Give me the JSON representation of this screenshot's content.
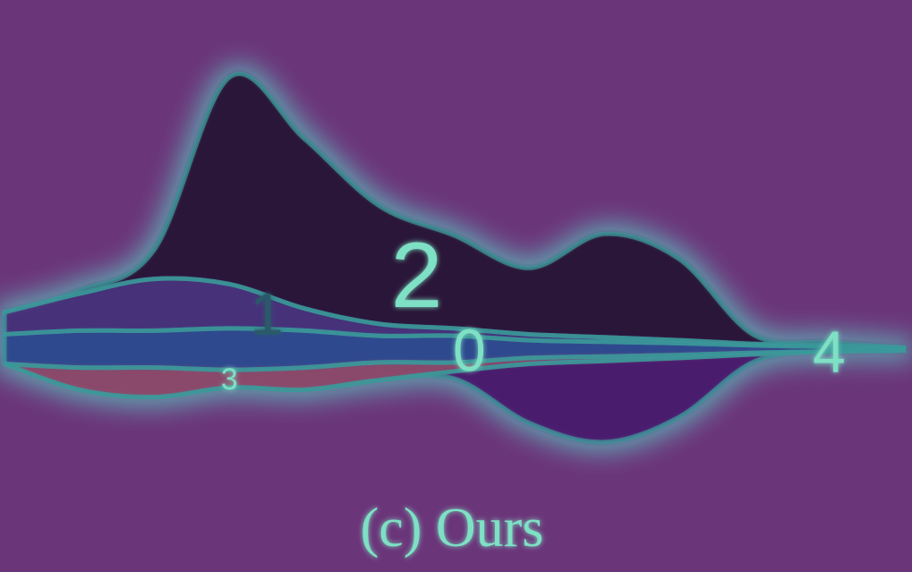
{
  "chart_data": {
    "type": "area",
    "subtype": "streamgraph",
    "title": "",
    "caption": "(c) Ours",
    "xlabel": "",
    "ylabel": "",
    "axes_visible": false,
    "grid": false,
    "legend": "none",
    "overlay": "saliency heatmap",
    "x": [
      0,
      1,
      2,
      3,
      4,
      5,
      6,
      7,
      8,
      9,
      10,
      11,
      12
    ],
    "order_top_to_bottom": [
      "2",
      "1",
      "0",
      "3",
      "4"
    ],
    "series": [
      {
        "name": "2",
        "label": "2",
        "values": [
          0,
          0.2,
          2,
          14,
          11.5,
          8,
          6.3,
          4.5,
          7,
          5.5,
          0.6,
          0.2,
          0
        ]
      },
      {
        "name": "1",
        "label": "1",
        "values": [
          1.5,
          2.5,
          3.5,
          3,
          1.5,
          0.8,
          0.5,
          0.4,
          0.3,
          0.2,
          0.1,
          0.1,
          0
        ]
      },
      {
        "name": "0",
        "label": "0",
        "values": [
          2,
          2.5,
          2.5,
          2.8,
          2.5,
          1.8,
          1.8,
          1.2,
          1,
          0.8,
          0.5,
          0.3,
          0.2
        ]
      },
      {
        "name": "3",
        "label": "3",
        "values": [
          0,
          1.5,
          2,
          1.2,
          1.5,
          1.2,
          0.6,
          0.4,
          0.3,
          0.2,
          0.1,
          0,
          0
        ]
      },
      {
        "name": "4",
        "label": "4",
        "values": [
          0,
          0,
          0,
          0,
          0,
          0,
          0.5,
          4,
          5.5,
          4,
          0.5,
          0,
          0
        ]
      }
    ],
    "label_positions": [
      {
        "series": "2",
        "x": 5.5,
        "size": "large"
      },
      {
        "series": "1",
        "x": 3.5,
        "size": "medium"
      },
      {
        "series": "0",
        "x": 6.2,
        "size": "medium"
      },
      {
        "series": "3",
        "x": 3,
        "size": "small"
      },
      {
        "series": "4",
        "x": 11,
        "size": "medium"
      }
    ],
    "colors": {
      "background": "#6b3579",
      "glow": "#5ec8c4",
      "outline": "#3a9a9a",
      "label_text": "#7ee0c4",
      "2": "#2a1238",
      "1": "#46307a",
      "0": "#2e4a8e",
      "3": "#8a4a6a",
      "4": "#4a1a6e"
    }
  }
}
